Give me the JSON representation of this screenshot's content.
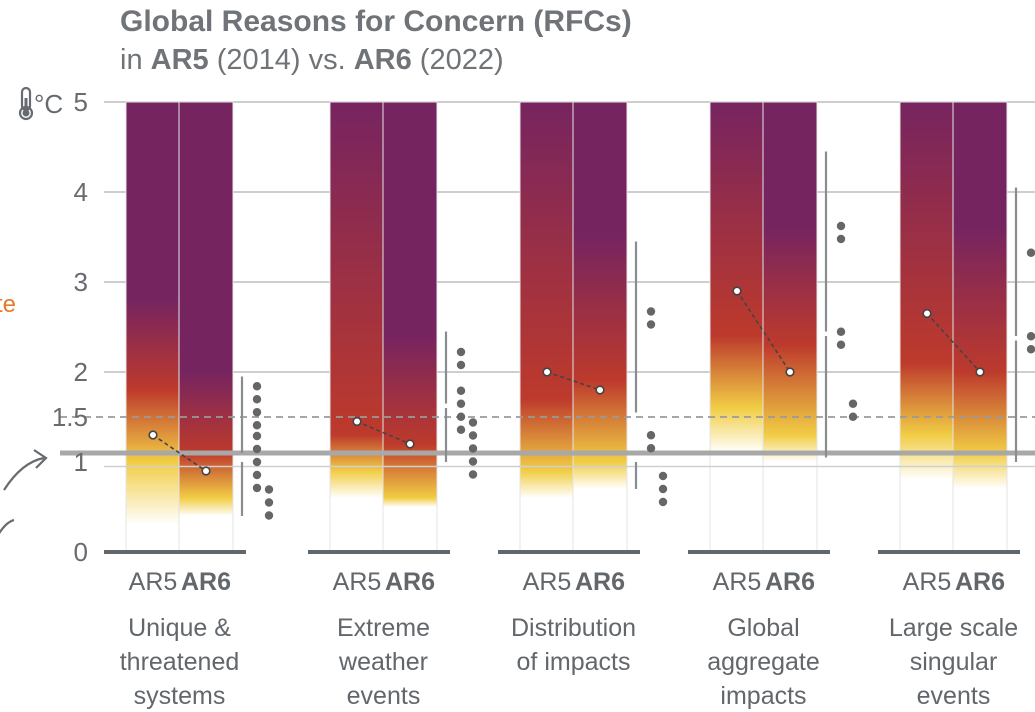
{
  "title": "Global Reasons for Concern (RFCs)",
  "subtitle": {
    "prefix": "in ",
    "ar5": "AR5",
    "ar5_year": " (2014) vs. ",
    "ar6": "AR6",
    "ar6_year": " (2022)"
  },
  "side_text": "te",
  "axis_unit": "°C",
  "thermometer_icon": "thermometer-icon",
  "colors": {
    "white": "#ffffff",
    "yellow": "#f1cd45",
    "red": "#bd3a2c",
    "purple": "#762460",
    "reference_line": "#a8a8a8",
    "accent_orange": "#e9792a"
  },
  "chart_data": {
    "type": "bar",
    "yunit": "°C",
    "ylim": [
      0,
      5
    ],
    "yticks": [
      "0",
      "1",
      "1.5",
      "2",
      "3",
      "4",
      "5"
    ],
    "reference_lines": [
      {
        "value": 1.5,
        "style": "dashed"
      },
      {
        "value": 1.1,
        "style": "solid"
      }
    ],
    "groups": [
      {
        "label": [
          "Unique &",
          "threatened",
          "systems"
        ],
        "bars": [
          {
            "label": "AR5",
            "white": 0.3,
            "yellow": 1.0,
            "red": 1.8,
            "purple": 2.8,
            "transition": 1.3
          },
          {
            "label": "AR6",
            "white": 0.4,
            "yellow": 0.6,
            "red": 1.1,
            "purple": 2.0,
            "transition": 0.9
          }
        ],
        "confidence": {
          "ranges": [
            [
              0.4,
              1.0
            ],
            [
              1.1,
              1.95
            ]
          ],
          "dots": [
            3,
            5,
            4
          ]
        }
      },
      {
        "label": [
          "Extreme",
          "weather",
          "events"
        ],
        "bars": [
          {
            "label": "AR5",
            "white": 0.6,
            "yellow": 0.9,
            "red": 1.3,
            "purple": 5.0,
            "transition": 1.45
          },
          {
            "label": "AR6",
            "white": 0.5,
            "yellow": 0.6,
            "red": 1.2,
            "purple": 2.4,
            "transition": 1.2
          }
        ],
        "confidence": {
          "ranges": [
            [
              1.0,
              1.6
            ],
            [
              1.65,
              2.45
            ]
          ],
          "dots": [
            5,
            4,
            2
          ]
        }
      },
      {
        "label": [
          "Distribution",
          "of impacts"
        ],
        "bars": [
          {
            "label": "AR5",
            "white": 0.6,
            "yellow": 0.9,
            "red": 1.7,
            "purple": 5.0,
            "transition": 2.0
          },
          {
            "label": "AR6",
            "white": 0.7,
            "yellow": 1.0,
            "red": 1.9,
            "purple": 3.5,
            "transition": 1.8
          }
        ],
        "confidence": {
          "ranges": [
            [
              0.7,
              1.0
            ],
            [
              1.55,
              3.45
            ]
          ],
          "dots": [
            3,
            2,
            2
          ]
        }
      },
      {
        "label": [
          "Global",
          "aggregate",
          "impacts"
        ],
        "bars": [
          {
            "label": "AR5",
            "white": 1.1,
            "yellow": 1.6,
            "red": 2.4,
            "purple": 5.0,
            "transition": 2.9
          },
          {
            "label": "AR6",
            "white": 1.0,
            "yellow": 1.3,
            "red": 2.3,
            "purple": 3.6,
            "transition": 2.0
          }
        ],
        "confidence": {
          "ranges": [
            [
              1.05,
              2.4
            ],
            [
              2.45,
              4.45
            ]
          ],
          "dots": [
            2,
            2,
            2
          ]
        }
      },
      {
        "label": [
          "Large scale",
          "singular",
          "events"
        ],
        "bars": [
          {
            "label": "AR5",
            "white": 0.8,
            "yellow": 1.3,
            "red": 2.1,
            "purple": 5.0,
            "transition": 2.65
          },
          {
            "label": "AR6",
            "white": 0.7,
            "yellow": 1.1,
            "red": 2.0,
            "purple": 3.6,
            "transition": 2.0
          }
        ],
        "confidence": {
          "ranges": [
            [
              1.0,
              2.35
            ],
            [
              2.4,
              4.05
            ]
          ],
          "dots": [
            3,
            2,
            1
          ]
        }
      }
    ]
  }
}
